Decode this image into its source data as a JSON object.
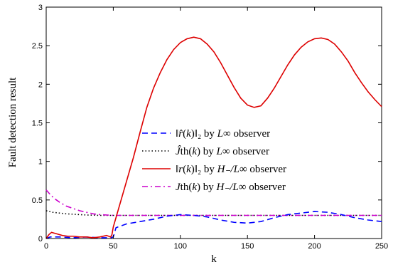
{
  "chart_data": {
    "type": "line",
    "xlabel": "k",
    "ylabel": "Fault detection result",
    "xlim": [
      0,
      250
    ],
    "ylim": [
      0,
      3
    ],
    "xticks": [
      "0",
      "50",
      "100",
      "150",
      "200",
      "250"
    ],
    "yticks": [
      "0",
      "0.5",
      "1",
      "1.5",
      "2",
      "2.5",
      "3"
    ],
    "grid": false,
    "legend_position": "center-right",
    "series": [
      {
        "name": "||r̂(k)||₂ by L∞ observer",
        "color": "#0000ff",
        "style": "dashed",
        "x": [
          0,
          3,
          10,
          20,
          30,
          40,
          48,
          50,
          52,
          60,
          70,
          80,
          90,
          100,
          110,
          120,
          130,
          140,
          150,
          160,
          170,
          180,
          190,
          200,
          210,
          220,
          230,
          240,
          250
        ],
        "y": [
          0.0,
          0.02,
          0.02,
          0.01,
          0.02,
          0.01,
          0.01,
          0.02,
          0.14,
          0.19,
          0.22,
          0.25,
          0.29,
          0.31,
          0.3,
          0.28,
          0.24,
          0.21,
          0.2,
          0.22,
          0.27,
          0.31,
          0.33,
          0.35,
          0.34,
          0.31,
          0.27,
          0.24,
          0.22
        ]
      },
      {
        "name": "Ĵth(k) by L∞ observer",
        "color": "#000000",
        "style": "dotted",
        "x": [
          0,
          5,
          10,
          15,
          20,
          25,
          30,
          40,
          50,
          100,
          150,
          200,
          250
        ],
        "y": [
          0.36,
          0.34,
          0.33,
          0.32,
          0.315,
          0.31,
          0.305,
          0.3,
          0.3,
          0.3,
          0.3,
          0.3,
          0.3
        ]
      },
      {
        "name": "||r(k)||₂ by H₋/L∞ observer",
        "color": "#dd0000",
        "style": "solid",
        "x": [
          0,
          2,
          4,
          8,
          12,
          16,
          20,
          25,
          30,
          35,
          40,
          45,
          48,
          49,
          50,
          55,
          60,
          65,
          70,
          75,
          80,
          85,
          90,
          95,
          100,
          105,
          110,
          115,
          120,
          125,
          130,
          135,
          140,
          145,
          150,
          155,
          160,
          165,
          170,
          175,
          180,
          185,
          190,
          195,
          200,
          205,
          210,
          215,
          220,
          225,
          230,
          235,
          240,
          245,
          250
        ],
        "y": [
          0.0,
          0.05,
          0.08,
          0.06,
          0.04,
          0.03,
          0.03,
          0.02,
          0.02,
          0.01,
          0.02,
          0.04,
          0.02,
          0.05,
          0.15,
          0.45,
          0.75,
          1.05,
          1.38,
          1.7,
          1.95,
          2.15,
          2.32,
          2.45,
          2.54,
          2.59,
          2.61,
          2.59,
          2.52,
          2.42,
          2.28,
          2.12,
          1.96,
          1.82,
          1.73,
          1.7,
          1.72,
          1.82,
          1.95,
          2.1,
          2.25,
          2.38,
          2.48,
          2.55,
          2.59,
          2.6,
          2.58,
          2.52,
          2.42,
          2.3,
          2.15,
          2.02,
          1.9,
          1.8,
          1.71
        ]
      },
      {
        "name": "Jth(k) by H₋/L∞ observer",
        "color": "#cc00cc",
        "style": "dashdot",
        "x": [
          0,
          3,
          6,
          10,
          15,
          20,
          25,
          30,
          35,
          40,
          50,
          100,
          150,
          200,
          250
        ],
        "y": [
          0.63,
          0.57,
          0.52,
          0.47,
          0.42,
          0.39,
          0.36,
          0.34,
          0.32,
          0.31,
          0.3,
          0.3,
          0.3,
          0.3,
          0.3
        ]
      }
    ],
    "legend": [
      {
        "pre": "‖",
        "it": "r̂",
        "mid": "(",
        "it2": "k",
        "post": ")‖₂ by ",
        "it3": "L",
        "tail": "∞ observer"
      },
      {
        "pre": "",
        "it": "Ĵ",
        "mid": "th(",
        "it2": "k",
        "post": ") by ",
        "it3": "L",
        "tail": "∞ observer"
      },
      {
        "pre": "‖",
        "it": "r",
        "mid": "(",
        "it2": "k",
        "post": ")‖₂ by ",
        "it3": "H₋/L",
        "tail": "∞ observer"
      },
      {
        "pre": "",
        "it": "J",
        "mid": "th(",
        "it2": "k",
        "post": ") by ",
        "it3": "H₋/L",
        "tail": "∞ observer"
      }
    ]
  }
}
